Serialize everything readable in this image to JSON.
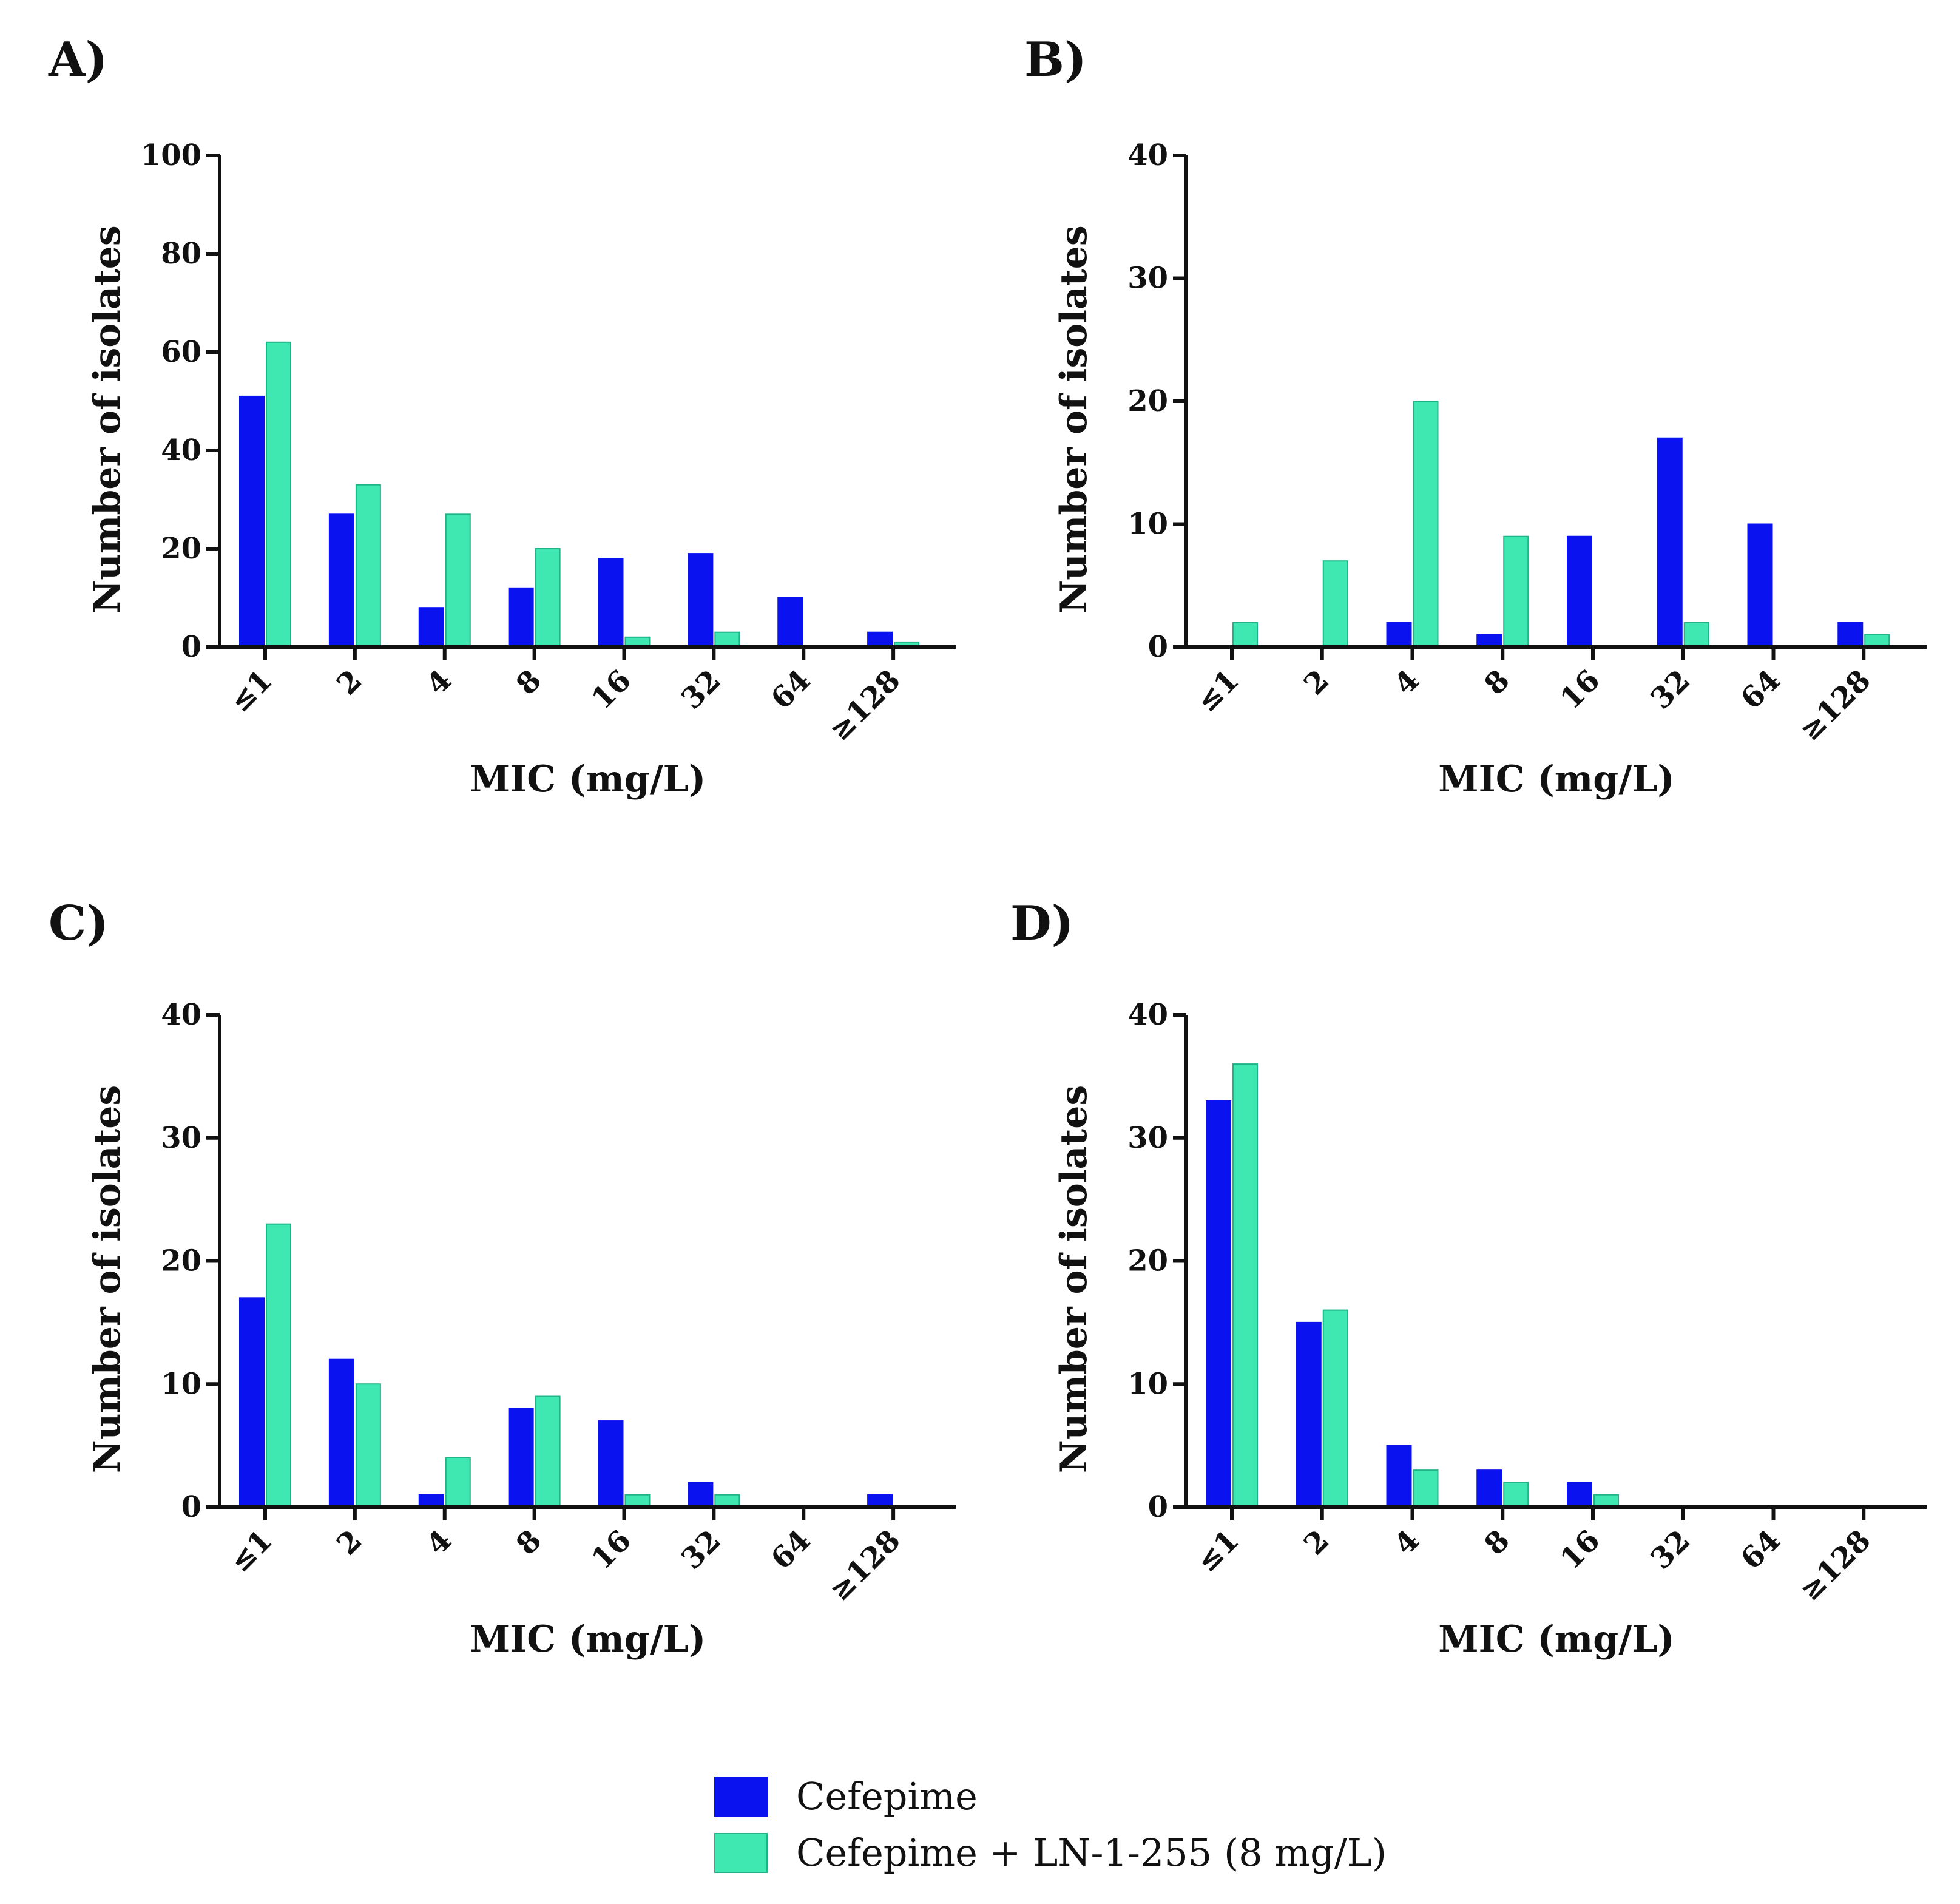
{
  "colors": {
    "cefepime": "#0b12f0",
    "combo": "#3ee8b0",
    "combo_stroke": "#1fb387",
    "axis": "#111111"
  },
  "legend": {
    "items": [
      {
        "key": "cefepime",
        "label": "Cefepime"
      },
      {
        "key": "combo",
        "label": "Cefepime + LN-1-255 (8 mg/L)"
      }
    ]
  },
  "chart_data": [
    {
      "panel": "A)",
      "type": "bar",
      "categories": [
        "≤1",
        "2",
        "4",
        "8",
        "16",
        "32",
        "64",
        "≥128"
      ],
      "series": [
        {
          "name": "Cefepime",
          "key": "cefepime",
          "values": [
            51,
            27,
            8,
            12,
            18,
            19,
            10,
            3
          ]
        },
        {
          "name": "Cefepime + LN-1-255 (8 mg/L)",
          "key": "combo",
          "values": [
            62,
            33,
            27,
            20,
            2,
            3,
            0,
            1
          ]
        }
      ],
      "xlabel": "MIC (mg/L)",
      "ylabel": "Number of isolates",
      "ylim": [
        0,
        100
      ],
      "yticks": [
        0,
        20,
        40,
        60,
        80,
        100
      ]
    },
    {
      "panel": "B)",
      "type": "bar",
      "categories": [
        "≤1",
        "2",
        "4",
        "8",
        "16",
        "32",
        "64",
        "≥128"
      ],
      "series": [
        {
          "name": "Cefepime",
          "key": "cefepime",
          "values": [
            0,
            0,
            2,
            1,
            9,
            17,
            10,
            2
          ]
        },
        {
          "name": "Cefepime + LN-1-255 (8 mg/L)",
          "key": "combo",
          "values": [
            2,
            7,
            20,
            9,
            0,
            2,
            0,
            1
          ]
        }
      ],
      "xlabel": "MIC (mg/L)",
      "ylabel": "Number of isolates",
      "ylim": [
        0,
        40
      ],
      "yticks": [
        0,
        10,
        20,
        30,
        40
      ]
    },
    {
      "panel": "C)",
      "type": "bar",
      "categories": [
        "≤1",
        "2",
        "4",
        "8",
        "16",
        "32",
        "64",
        "≥128"
      ],
      "series": [
        {
          "name": "Cefepime",
          "key": "cefepime",
          "values": [
            17,
            12,
            1,
            8,
            7,
            2,
            0,
            1
          ]
        },
        {
          "name": "Cefepime + LN-1-255 (8 mg/L)",
          "key": "combo",
          "values": [
            23,
            10,
            4,
            9,
            1,
            1,
            0,
            0
          ]
        }
      ],
      "xlabel": "MIC (mg/L)",
      "ylabel": "Number of isolates",
      "ylim": [
        0,
        40
      ],
      "yticks": [
        0,
        10,
        20,
        30,
        40
      ]
    },
    {
      "panel": "D)",
      "type": "bar",
      "categories": [
        "≤1",
        "2",
        "4",
        "8",
        "16",
        "32",
        "64",
        "≥128"
      ],
      "series": [
        {
          "name": "Cefepime",
          "key": "cefepime",
          "values": [
            33,
            15,
            5,
            3,
            2,
            0,
            0,
            0
          ]
        },
        {
          "name": "Cefepime + LN-1-255 (8 mg/L)",
          "key": "combo",
          "values": [
            36,
            16,
            3,
            2,
            1,
            0,
            0,
            0
          ]
        }
      ],
      "xlabel": "MIC (mg/L)",
      "ylabel": "Number of isolates",
      "ylim": [
        0,
        40
      ],
      "yticks": [
        0,
        10,
        20,
        30,
        40
      ]
    }
  ]
}
